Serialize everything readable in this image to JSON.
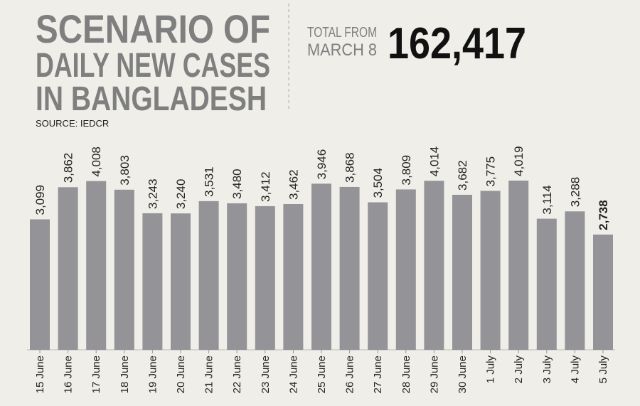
{
  "chart_data": {
    "type": "bar",
    "title": [
      "SCENARIO OF",
      "DAILY NEW CASES",
      "IN BANGLADESH"
    ],
    "source": "SOURCE: IEDCR",
    "total_label": [
      "TOTAL FROM",
      "MARCH 8"
    ],
    "total": "162,417",
    "categories": [
      "15 June",
      "16 June",
      "17 June",
      "18 June",
      "19 June",
      "20 June",
      "21 June",
      "22 June",
      "23 June",
      "24 June",
      "25 June",
      "26 June",
      "27 June",
      "28 June",
      "29 June",
      "30 June",
      "1 July",
      "2 July",
      "3 July",
      "4 July",
      "5 July"
    ],
    "values": [
      3099,
      3862,
      4008,
      3803,
      3243,
      3240,
      3531,
      3480,
      3412,
      3462,
      3946,
      3868,
      3504,
      3809,
      4014,
      3682,
      3775,
      4019,
      3114,
      3288,
      2738
    ],
    "value_labels": [
      "3,099",
      "3,862",
      "4,008",
      "3,803",
      "3,243",
      "3,240",
      "3,531",
      "3,480",
      "3,412",
      "3,462",
      "3,946",
      "3,868",
      "3,504",
      "3,809",
      "4,014",
      "3,682",
      "3,775",
      "4,019",
      "3,114",
      "3,288",
      "2,738"
    ],
    "color": "#949498"
  }
}
